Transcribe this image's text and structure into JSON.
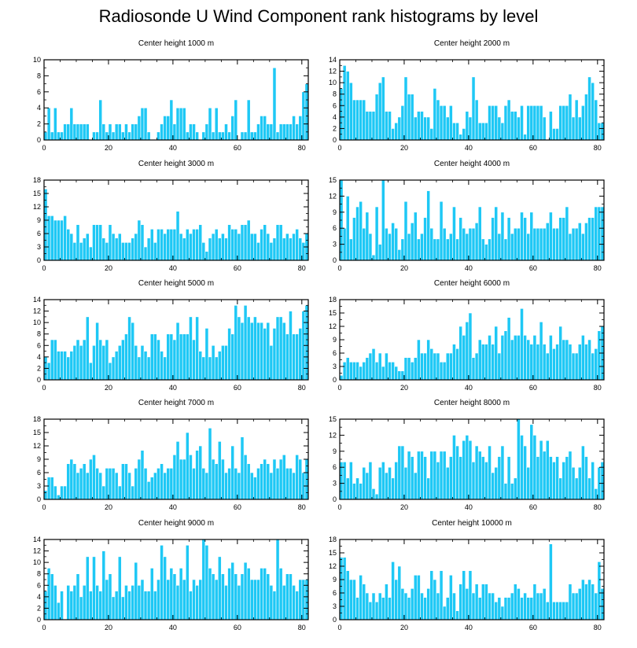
{
  "title": "Radiosonde U Wind Component rank histograms by level",
  "colors": {
    "bar": "#1ec8f5",
    "bar_edge": "#ffffff",
    "axis": "#000000"
  },
  "chart_data": [
    {
      "type": "bar",
      "title": "Center height 1000 m",
      "xlim": [
        0,
        82
      ],
      "xticks": [
        0,
        20,
        40,
        60,
        80
      ],
      "ylim": [
        0,
        10
      ],
      "yticks": [
        0,
        2,
        4,
        6,
        8,
        10
      ],
      "values": [
        1,
        4,
        1,
        4,
        1,
        1,
        2,
        2,
        4,
        2,
        2,
        2,
        2,
        2,
        0,
        1,
        1,
        5,
        2,
        1,
        2,
        1,
        2,
        2,
        1,
        2,
        1,
        2,
        2,
        3,
        4,
        4,
        1,
        0,
        0,
        1,
        2,
        3,
        3,
        5,
        2,
        4,
        4,
        4,
        1,
        2,
        2,
        1,
        0,
        1,
        2,
        4,
        1,
        4,
        1,
        1,
        2,
        1,
        3,
        5,
        0,
        1,
        1,
        5,
        1,
        1,
        2,
        3,
        3,
        2,
        2,
        9,
        1,
        2,
        2,
        2,
        2,
        3,
        2,
        3,
        6,
        7
      ]
    },
    {
      "type": "bar",
      "title": "Center height 2000 m",
      "xlim": [
        0,
        82
      ],
      "xticks": [
        0,
        20,
        40,
        60,
        80
      ],
      "ylim": [
        0,
        14
      ],
      "yticks": [
        0,
        2,
        4,
        6,
        8,
        10,
        12,
        14
      ],
      "values": [
        9,
        13,
        12,
        10,
        7,
        7,
        7,
        7,
        5,
        5,
        5,
        8,
        10,
        11,
        5,
        5,
        2,
        3,
        4,
        6,
        11,
        8,
        8,
        4,
        5,
        5,
        4,
        4,
        2,
        9,
        7,
        6,
        6,
        4,
        6,
        3,
        3,
        1,
        2,
        5,
        4,
        11,
        7,
        3,
        3,
        3,
        6,
        6,
        6,
        4,
        3,
        6,
        7,
        5,
        5,
        4,
        6,
        1,
        6,
        6,
        6,
        6,
        6,
        4,
        0,
        5,
        2,
        2,
        6,
        6,
        6,
        8,
        4,
        7,
        4,
        6,
        8,
        11,
        10,
        7,
        3,
        3
      ]
    },
    {
      "type": "bar",
      "title": "Center height 3000 m",
      "xlim": [
        0,
        82
      ],
      "xticks": [
        0,
        20,
        40,
        60,
        80
      ],
      "ylim": [
        0,
        18
      ],
      "yticks": [
        0,
        3,
        6,
        9,
        12,
        15,
        18
      ],
      "values": [
        16,
        10,
        10,
        9,
        9,
        9,
        10,
        7,
        6,
        4,
        8,
        4,
        5,
        6,
        3,
        8,
        8,
        8,
        5,
        4,
        8,
        6,
        5,
        6,
        4,
        4,
        4,
        5,
        6,
        9,
        8,
        3,
        5,
        7,
        4,
        7,
        7,
        6,
        7,
        7,
        7,
        11,
        6,
        5,
        7,
        6,
        7,
        7,
        8,
        4,
        2,
        5,
        6,
        7,
        5,
        6,
        5,
        8,
        7,
        7,
        6,
        8,
        8,
        9,
        6,
        6,
        4,
        7,
        8,
        6,
        4,
        5,
        8,
        8,
        5,
        6,
        5,
        6,
        7,
        5,
        4,
        6
      ]
    },
    {
      "type": "bar",
      "title": "Center height 4000 m",
      "xlim": [
        0,
        82
      ],
      "xticks": [
        0,
        20,
        40,
        60,
        80
      ],
      "ylim": [
        0,
        15
      ],
      "yticks": [
        0,
        3,
        6,
        9,
        12,
        15
      ],
      "values": [
        15,
        6,
        12,
        4,
        8,
        10,
        11,
        6,
        9,
        5,
        1,
        10,
        3,
        15,
        6,
        5,
        7,
        6,
        2,
        4,
        11,
        5,
        7,
        9,
        4,
        5,
        8,
        13,
        6,
        4,
        4,
        11,
        6,
        4,
        5,
        10,
        4,
        8,
        6,
        5,
        6,
        6,
        7,
        10,
        4,
        3,
        4,
        8,
        10,
        5,
        9,
        4,
        8,
        5,
        6,
        6,
        9,
        8,
        5,
        9,
        6,
        6,
        6,
        6,
        7,
        9,
        6,
        6,
        8,
        8,
        10,
        5,
        6,
        6,
        7,
        5,
        7,
        8,
        8,
        10,
        10,
        10
      ]
    },
    {
      "type": "bar",
      "title": "Center height 5000 m",
      "xlim": [
        0,
        82
      ],
      "xticks": [
        0,
        20,
        40,
        60,
        80
      ],
      "ylim": [
        0,
        14
      ],
      "yticks": [
        0,
        2,
        4,
        6,
        8,
        10,
        12,
        14
      ],
      "values": [
        4,
        3,
        7,
        7,
        5,
        5,
        5,
        4,
        5,
        6,
        7,
        6,
        7,
        11,
        3,
        6,
        10,
        7,
        6,
        7,
        3,
        4,
        5,
        6,
        7,
        8,
        11,
        10,
        6,
        4,
        6,
        5,
        4,
        8,
        8,
        7,
        5,
        4,
        8,
        8,
        7,
        10,
        8,
        8,
        8,
        11,
        7,
        11,
        5,
        4,
        9,
        4,
        6,
        4,
        5,
        6,
        6,
        9,
        8,
        13,
        11,
        10,
        13,
        11,
        10,
        11,
        10,
        10,
        9,
        10,
        6,
        9,
        11,
        11,
        10,
        8,
        12,
        8,
        8,
        9,
        12,
        13
      ]
    },
    {
      "type": "bar",
      "title": "Center height 6000 m",
      "xlim": [
        0,
        82
      ],
      "xticks": [
        0,
        20,
        40,
        60,
        80
      ],
      "ylim": [
        0,
        18
      ],
      "yticks": [
        0,
        3,
        6,
        9,
        12,
        15,
        18
      ],
      "values": [
        1,
        4,
        5,
        4,
        4,
        4,
        3,
        4,
        5,
        6,
        7,
        4,
        6,
        3,
        6,
        4,
        4,
        3,
        2,
        2,
        5,
        5,
        4,
        5,
        9,
        6,
        6,
        9,
        7,
        6,
        6,
        4,
        4,
        6,
        6,
        8,
        7,
        12,
        10,
        13,
        15,
        5,
        6,
        9,
        8,
        8,
        10,
        8,
        12,
        6,
        10,
        11,
        14,
        9,
        10,
        10,
        16,
        10,
        9,
        8,
        10,
        8,
        13,
        8,
        6,
        10,
        7,
        8,
        12,
        9,
        9,
        8,
        6,
        6,
        8,
        10,
        8,
        9,
        6,
        7,
        11,
        12
      ]
    },
    {
      "type": "bar",
      "title": "Center height 7000 m",
      "xlim": [
        0,
        82
      ],
      "xticks": [
        0,
        20,
        40,
        60,
        80
      ],
      "ylim": [
        0,
        18
      ],
      "yticks": [
        0,
        3,
        6,
        9,
        12,
        15,
        18
      ],
      "values": [
        2,
        5,
        5,
        3,
        1,
        3,
        3,
        8,
        9,
        8,
        6,
        7,
        8,
        6,
        9,
        10,
        7,
        6,
        3,
        7,
        7,
        7,
        6,
        3,
        8,
        8,
        6,
        3,
        7,
        9,
        11,
        7,
        4,
        5,
        6,
        7,
        8,
        6,
        7,
        7,
        10,
        13,
        9,
        9,
        15,
        10,
        7,
        11,
        12,
        7,
        6,
        16,
        9,
        8,
        13,
        9,
        6,
        7,
        12,
        7,
        6,
        14,
        10,
        8,
        6,
        5,
        7,
        8,
        9,
        8,
        6,
        9,
        7,
        9,
        10,
        7,
        7,
        6,
        10,
        9,
        6,
        9
      ]
    },
    {
      "type": "bar",
      "title": "Center height 8000 m",
      "xlim": [
        0,
        82
      ],
      "xticks": [
        0,
        20,
        40,
        60,
        80
      ],
      "ylim": [
        0,
        15
      ],
      "yticks": [
        0,
        3,
        6,
        9,
        12,
        15
      ],
      "values": [
        7,
        7,
        4,
        7,
        3,
        4,
        3,
        6,
        5,
        7,
        2,
        1,
        6,
        7,
        5,
        6,
        4,
        7,
        10,
        10,
        6,
        9,
        8,
        5,
        9,
        9,
        8,
        4,
        9,
        9,
        7,
        9,
        9,
        6,
        8,
        12,
        10,
        8,
        11,
        12,
        11,
        7,
        10,
        9,
        8,
        7,
        10,
        5,
        6,
        8,
        10,
        3,
        8,
        3,
        4,
        15,
        12,
        10,
        6,
        14,
        12,
        8,
        11,
        9,
        11,
        8,
        7,
        8,
        4,
        7,
        8,
        9,
        6,
        4,
        6,
        10,
        8,
        4,
        7,
        2,
        6,
        7
      ]
    },
    {
      "type": "bar",
      "title": "Center height 9000 m",
      "xlim": [
        0,
        82
      ],
      "xticks": [
        0,
        20,
        40,
        60,
        80
      ],
      "ylim": [
        0,
        14
      ],
      "yticks": [
        0,
        2,
        4,
        6,
        8,
        10,
        12,
        14
      ],
      "values": [
        5,
        9,
        8,
        6,
        3,
        5,
        0,
        6,
        5,
        6,
        8,
        4,
        6,
        11,
        5,
        11,
        6,
        5,
        12,
        7,
        8,
        4,
        5,
        11,
        4,
        6,
        5,
        6,
        10,
        6,
        7,
        5,
        5,
        9,
        5,
        7,
        13,
        11,
        7,
        9,
        8,
        6,
        9,
        7,
        13,
        5,
        7,
        6,
        7,
        14,
        13,
        9,
        8,
        7,
        11,
        8,
        6,
        9,
        10,
        8,
        6,
        8,
        10,
        9,
        7,
        7,
        7,
        9,
        9,
        8,
        6,
        5,
        14,
        9,
        6,
        8,
        8,
        6,
        5,
        7,
        7,
        7
      ]
    },
    {
      "type": "bar",
      "title": "Center height 10000 m",
      "xlim": [
        0,
        82
      ],
      "xticks": [
        0,
        20,
        40,
        60,
        80
      ],
      "ylim": [
        0,
        18
      ],
      "yticks": [
        0,
        3,
        6,
        9,
        12,
        15,
        18
      ],
      "values": [
        14,
        14,
        11,
        9,
        9,
        5,
        10,
        8,
        6,
        4,
        6,
        4,
        6,
        5,
        8,
        5,
        13,
        9,
        12,
        7,
        6,
        5,
        7,
        10,
        10,
        6,
        5,
        7,
        11,
        9,
        6,
        11,
        3,
        5,
        10,
        6,
        2,
        8,
        11,
        7,
        11,
        6,
        8,
        5,
        8,
        8,
        6,
        6,
        4,
        5,
        3,
        5,
        5,
        6,
        8,
        7,
        5,
        6,
        5,
        5,
        8,
        6,
        6,
        7,
        4,
        17,
        4,
        4,
        4,
        4,
        4,
        8,
        6,
        6,
        7,
        9,
        8,
        9,
        8,
        6,
        13,
        7
      ]
    }
  ]
}
